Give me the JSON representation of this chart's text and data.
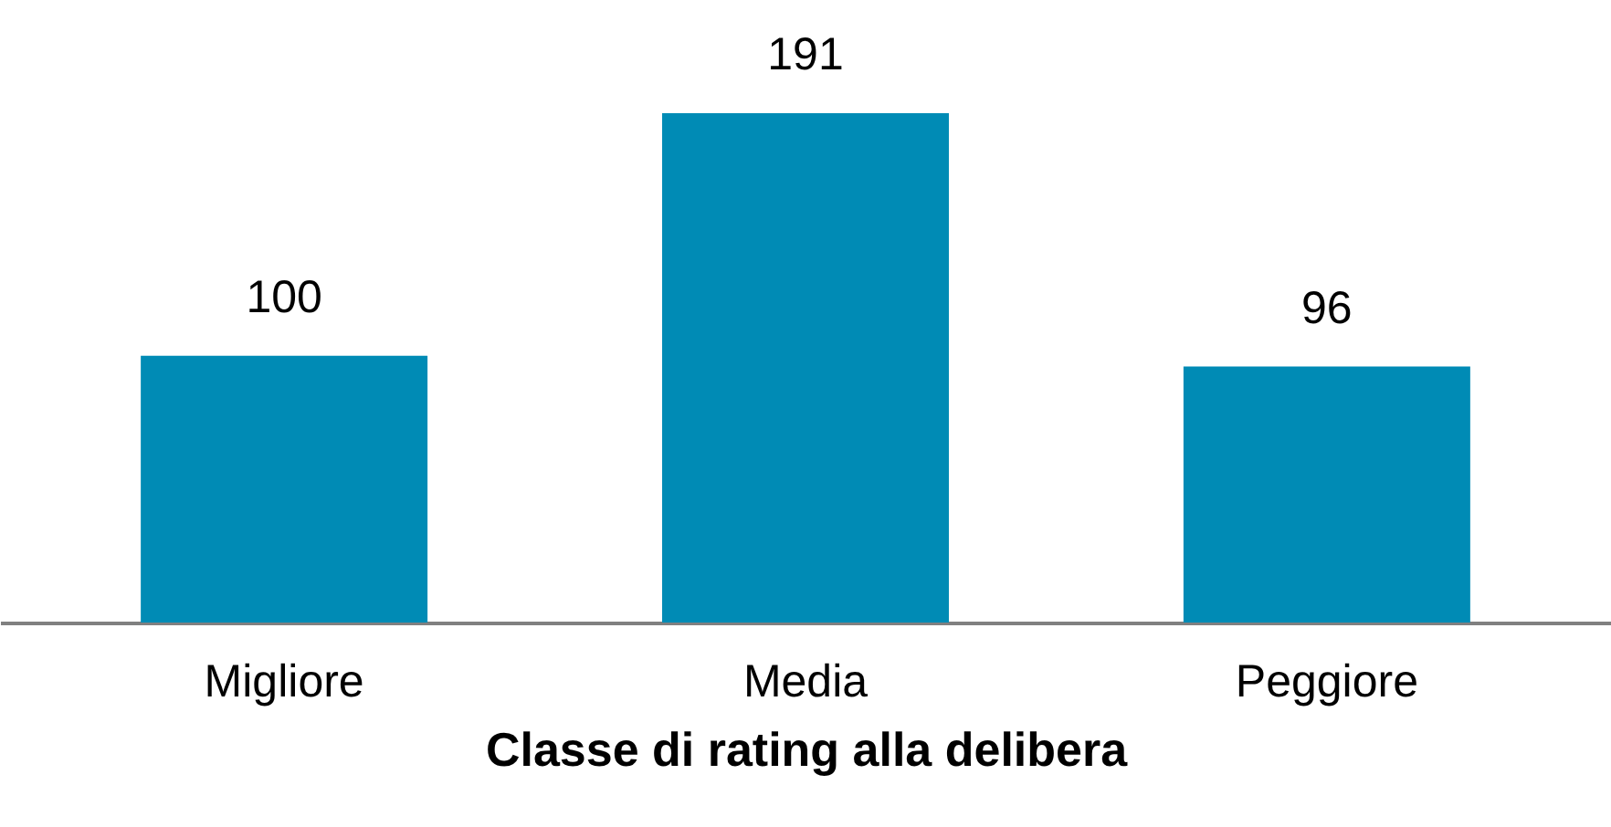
{
  "chart_data": {
    "type": "bar",
    "xlabel": "Classe di rating alla delibera",
    "categories": [
      "Migliore",
      "Media",
      "Peggiore"
    ],
    "values": [
      100,
      191,
      96
    ],
    "color": "#008bb5",
    "data_labels": true,
    "grid": false
  }
}
